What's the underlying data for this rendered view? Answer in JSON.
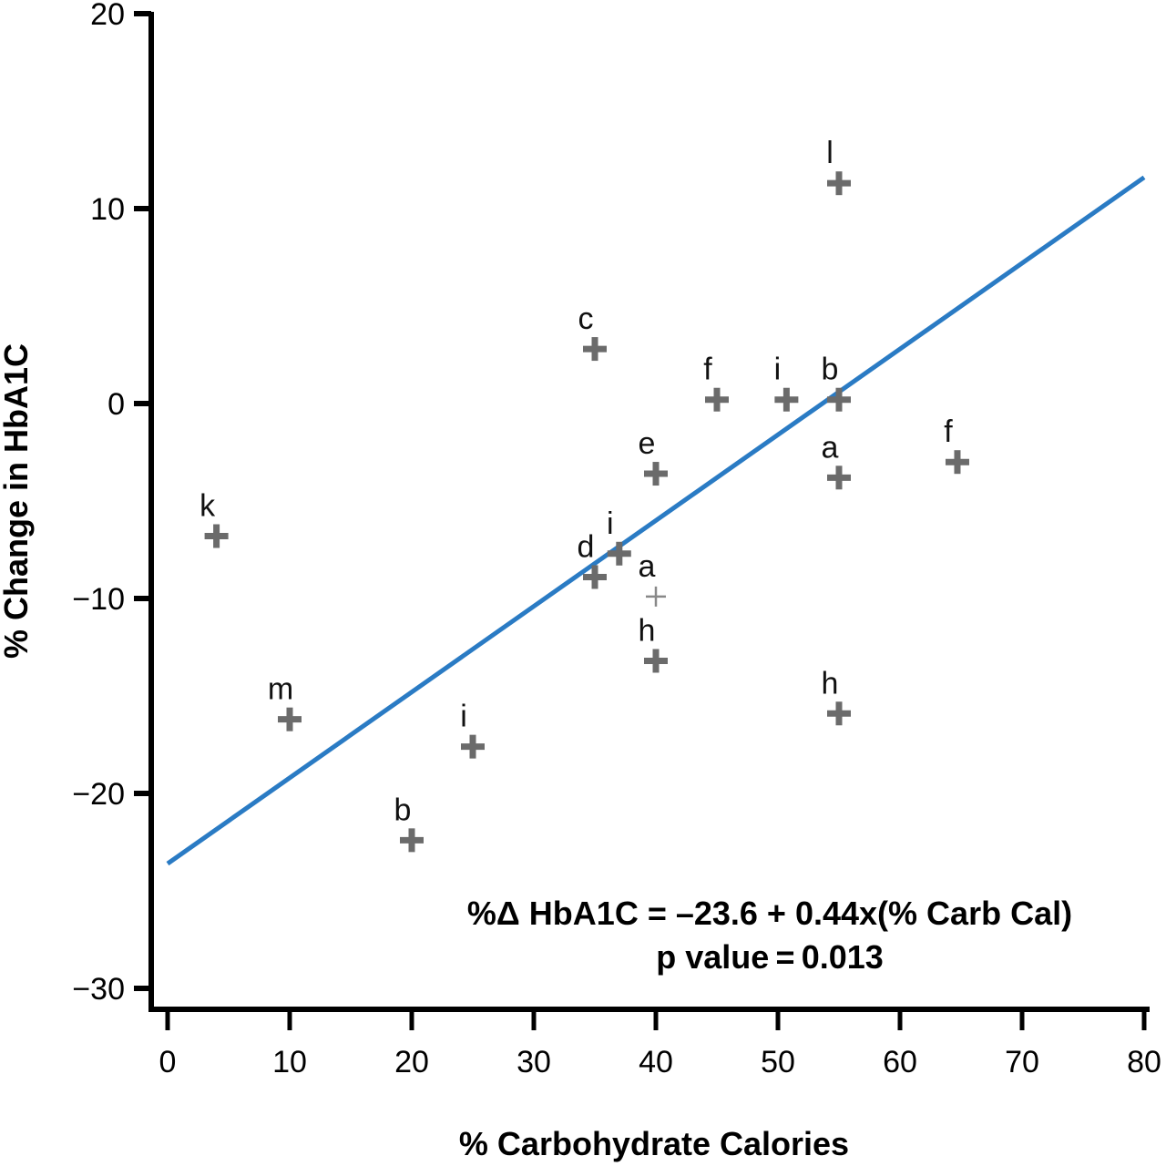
{
  "chart_data": {
    "type": "scatter",
    "title": "",
    "xlabel": "% Carbohydrate Calories",
    "ylabel": "% Change in HbA1C",
    "xlim": [
      0,
      80
    ],
    "ylim": [
      -30,
      20
    ],
    "xticks": [
      0,
      10,
      20,
      30,
      40,
      50,
      60,
      70,
      80
    ],
    "yticks": [
      20,
      10,
      0,
      -10,
      -20,
      -30
    ],
    "ytick_labels": [
      "20",
      "10",
      "0",
      "−10",
      "−20",
      "−30"
    ],
    "grid": false,
    "marker_color": "#6b6b6b",
    "line_color": "#2a7bc4",
    "points": [
      {
        "label": "k",
        "x": 4,
        "y": -6.8,
        "style": "bold"
      },
      {
        "label": "m",
        "x": 10,
        "y": -16.2,
        "style": "bold"
      },
      {
        "label": "b",
        "x": 20,
        "y": -22.4,
        "style": "bold"
      },
      {
        "label": "i",
        "x": 25,
        "y": -17.6,
        "style": "bold"
      },
      {
        "label": "c",
        "x": 35,
        "y": 2.8,
        "style": "bold"
      },
      {
        "label": "d",
        "x": 35,
        "y": -8.9,
        "style": "bold"
      },
      {
        "label": "i",
        "x": 37,
        "y": -7.7,
        "style": "bold"
      },
      {
        "label": "a",
        "x": 40,
        "y": -9.9,
        "style": "thin"
      },
      {
        "label": "e",
        "x": 40,
        "y": -3.6,
        "style": "bold"
      },
      {
        "label": "h",
        "x": 40,
        "y": -13.2,
        "style": "bold"
      },
      {
        "label": "f",
        "x": 45,
        "y": 0.2,
        "style": "bold"
      },
      {
        "label": "i",
        "x": 50.7,
        "y": 0.2,
        "style": "bold"
      },
      {
        "label": "b",
        "x": 55,
        "y": 0.2,
        "style": "bold"
      },
      {
        "label": "a",
        "x": 55,
        "y": -3.8,
        "style": "bold"
      },
      {
        "label": "l",
        "x": 55,
        "y": 11.3,
        "style": "bold"
      },
      {
        "label": "h",
        "x": 55,
        "y": -15.9,
        "style": "bold"
      },
      {
        "label": "f",
        "x": 64.7,
        "y": -3.0,
        "style": "bold"
      }
    ],
    "regression": {
      "intercept": -23.6,
      "slope": 0.44,
      "x_range": [
        0,
        80
      ]
    },
    "annotations": [
      "%Δ HbA1C = –23.6 + 0.44x(% Carb Cal)",
      "p value = 0.013"
    ]
  }
}
